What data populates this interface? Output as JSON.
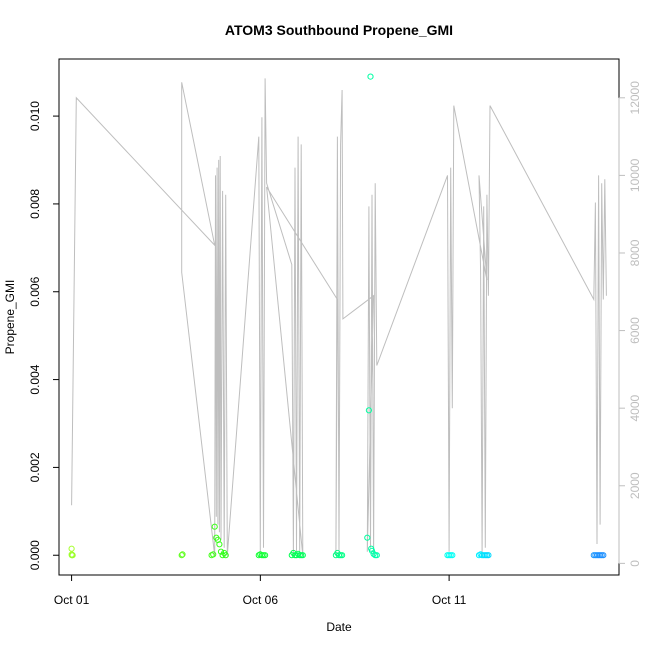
{
  "chart_data": {
    "type": "scatter",
    "title": "ATOM3 Southbound Propene_GMI",
    "xlabel": "Date",
    "ylabel": "Propene_GMI",
    "xlim": [
      "2016-09-30T16:00",
      "2016-10-15T12:00"
    ],
    "x_ticks": [
      {
        "date": "2016-10-01T00:00",
        "label": "Oct 01"
      },
      {
        "date": "2016-10-06T00:00",
        "label": "Oct 06"
      },
      {
        "date": "2016-10-11T00:00",
        "label": "Oct 11"
      }
    ],
    "ylim": [
      -0.00045,
      0.0113
    ],
    "y_ticks": [
      0.0,
      0.002,
      0.004,
      0.006,
      0.008,
      0.01
    ],
    "y_tick_labels": [
      "0.000",
      "0.002",
      "0.004",
      "0.006",
      "0.008",
      "0.010"
    ],
    "y2_label": "",
    "y2lim": [
      -300,
      13000
    ],
    "y2_ticks": [
      0,
      2000,
      4000,
      6000,
      8000,
      10000,
      12000
    ],
    "y2_tick_labels": [
      "0",
      "2000",
      "4000",
      "6000",
      "8000",
      "10000",
      "12000"
    ],
    "grid": false,
    "legend": "none",
    "colors": {
      "altitude_line": "#bebebe",
      "axes": "#000000",
      "right_axis": "#bebebe",
      "point_gradient": [
        "#adff2f",
        "#00ff00",
        "#00ff7f",
        "#00ffff",
        "#1e90ff"
      ]
    },
    "series": [
      {
        "points": [
          {
            "t": "2016-10-01T00:00",
            "v": 0.00015,
            "c": "#a8ff33"
          },
          {
            "t": "2016-10-01T00:05",
            "v": 2e-05,
            "c": "#a8ff33"
          },
          {
            "t": "2016-10-01T00:10",
            "v": 0.0,
            "c": "#a0ff30"
          },
          {
            "t": "2016-10-01T00:20",
            "v": 0.0,
            "c": "#a0ff30"
          },
          {
            "t": "2016-10-01T00:40",
            "v": 0.0,
            "c": "#98ff2c"
          },
          {
            "t": "2016-10-03T22:00",
            "v": 0.0,
            "c": "#60ff20"
          },
          {
            "t": "2016-10-03T22:30",
            "v": 2e-05,
            "c": "#60ff20"
          },
          {
            "t": "2016-10-04T17:00",
            "v": 0.0,
            "c": "#40ff18"
          },
          {
            "t": "2016-10-04T18:00",
            "v": 2e-05,
            "c": "#40ff18"
          },
          {
            "t": "2016-10-04T19:00",
            "v": 0.00065,
            "c": "#3cff18"
          },
          {
            "t": "2016-10-04T20:00",
            "v": 0.0004,
            "c": "#3cff18"
          },
          {
            "t": "2016-10-04T21:00",
            "v": 0.00035,
            "c": "#38ff18"
          },
          {
            "t": "2016-10-04T22:00",
            "v": 0.00025,
            "c": "#38ff18"
          },
          {
            "t": "2016-10-04T23:00",
            "v": 8e-05,
            "c": "#34ff18"
          },
          {
            "t": "2016-10-05T00:00",
            "v": 0.0,
            "c": "#30ff18"
          },
          {
            "t": "2016-10-05T01:00",
            "v": 5e-05,
            "c": "#30ff18"
          },
          {
            "t": "2016-10-05T02:00",
            "v": 0.0,
            "c": "#2cff18"
          },
          {
            "t": "2016-10-05T23:00",
            "v": 0.0,
            "c": "#10ff30"
          },
          {
            "t": "2016-10-06T00:00",
            "v": 2e-05,
            "c": "#10ff30"
          },
          {
            "t": "2016-10-06T01:00",
            "v": 0.0,
            "c": "#10ff34"
          },
          {
            "t": "2016-10-06T02:00",
            "v": 0.0,
            "c": "#10ff34"
          },
          {
            "t": "2016-10-06T03:00",
            "v": 0.0,
            "c": "#10ff38"
          },
          {
            "t": "2016-10-06T20:00",
            "v": 0.0,
            "c": "#00ff50"
          },
          {
            "t": "2016-10-06T21:00",
            "v": 5e-05,
            "c": "#00ff50"
          },
          {
            "t": "2016-10-06T22:00",
            "v": 0.0,
            "c": "#00ff54"
          },
          {
            "t": "2016-10-06T23:00",
            "v": 0.0,
            "c": "#00ff54"
          },
          {
            "t": "2016-10-07T00:00",
            "v": 3e-05,
            "c": "#00ff58"
          },
          {
            "t": "2016-10-07T01:00",
            "v": 0.0,
            "c": "#00ff58"
          },
          {
            "t": "2016-10-07T02:00",
            "v": 0.0,
            "c": "#00ff5c"
          },
          {
            "t": "2016-10-07T03:00",
            "v": 0.0,
            "c": "#00ff5c"
          },
          {
            "t": "2016-10-08T00:00",
            "v": 0.0,
            "c": "#00ff80"
          },
          {
            "t": "2016-10-08T01:00",
            "v": 5e-05,
            "c": "#00ff80"
          },
          {
            "t": "2016-10-08T02:00",
            "v": 0.0,
            "c": "#00ff84"
          },
          {
            "t": "2016-10-08T03:00",
            "v": 0.0,
            "c": "#00ff84"
          },
          {
            "t": "2016-10-08T04:00",
            "v": 0.0,
            "c": "#00ff88"
          },
          {
            "t": "2016-10-08T20:00",
            "v": 0.0004,
            "c": "#00ffa0"
          },
          {
            "t": "2016-10-08T21:00",
            "v": 0.0033,
            "c": "#00ffa0"
          },
          {
            "t": "2016-10-08T22:00",
            "v": 0.0109,
            "c": "#00ffa4"
          },
          {
            "t": "2016-10-08T22:30",
            "v": 0.00015,
            "c": "#00ffa4"
          },
          {
            "t": "2016-10-08T23:00",
            "v": 0.0001,
            "c": "#00ffa8"
          },
          {
            "t": "2016-10-09T00:00",
            "v": 3e-05,
            "c": "#00ffa8"
          },
          {
            "t": "2016-10-09T01:00",
            "v": 0.0,
            "c": "#00ffac"
          },
          {
            "t": "2016-10-09T02:00",
            "v": 0.0,
            "c": "#00ffac"
          },
          {
            "t": "2016-10-10T23:00",
            "v": 0.0,
            "c": "#00ffee"
          },
          {
            "t": "2016-10-11T00:00",
            "v": 0.0,
            "c": "#00fff0"
          },
          {
            "t": "2016-10-11T01:00",
            "v": 0.0,
            "c": "#00fff4"
          },
          {
            "t": "2016-10-11T02:00",
            "v": 0.0,
            "c": "#00fff8"
          },
          {
            "t": "2016-10-11T19:00",
            "v": 0.0,
            "c": "#00f0ff"
          },
          {
            "t": "2016-10-11T20:00",
            "v": 2e-05,
            "c": "#00ecff"
          },
          {
            "t": "2016-10-11T21:00",
            "v": 0.0,
            "c": "#00e8ff"
          },
          {
            "t": "2016-10-11T22:00",
            "v": 0.0,
            "c": "#00e4ff"
          },
          {
            "t": "2016-10-11T23:00",
            "v": 0.0,
            "c": "#00e0ff"
          },
          {
            "t": "2016-10-12T00:00",
            "v": 0.0,
            "c": "#00dcff"
          },
          {
            "t": "2016-10-12T01:00",
            "v": 0.0,
            "c": "#00d8ff"
          },
          {
            "t": "2016-10-14T20:00",
            "v": 0.0,
            "c": "#1e98ff"
          },
          {
            "t": "2016-10-14T21:00",
            "v": 0.0,
            "c": "#1e96ff"
          },
          {
            "t": "2016-10-14T22:00",
            "v": 0.0,
            "c": "#1e94ff"
          },
          {
            "t": "2016-10-14T23:00",
            "v": 0.0,
            "c": "#1e92ff"
          },
          {
            "t": "2016-10-15T00:00",
            "v": 0.0,
            "c": "#1e90ff"
          },
          {
            "t": "2016-10-15T01:00",
            "v": 0.0,
            "c": "#1e90ff"
          },
          {
            "t": "2016-10-15T02:00",
            "v": 0.0,
            "c": "#1e90ff"
          }
        ]
      }
    ],
    "altitude_line": [
      [
        "2016-10-01T00:00",
        1500
      ],
      [
        "2016-10-01T03:00",
        12000
      ],
      [
        "2016-10-04T19:00",
        8200
      ],
      [
        "2016-10-03T22:00",
        12400
      ],
      [
        "2016-10-03T22:00",
        7500
      ],
      [
        "2016-10-04T19:00",
        200
      ],
      [
        "2016-10-04T19:30",
        10000
      ],
      [
        "2016-10-04T20:00",
        1200
      ],
      [
        "2016-10-04T20:30",
        10200
      ],
      [
        "2016-10-04T21:00",
        1000
      ],
      [
        "2016-10-04T21:30",
        10400
      ],
      [
        "2016-10-04T22:00",
        800
      ],
      [
        "2016-10-04T22:30",
        10500
      ],
      [
        "2016-10-04T23:00",
        600
      ],
      [
        "2016-10-05T00:00",
        9600
      ],
      [
        "2016-10-05T01:00",
        400
      ],
      [
        "2016-10-05T02:00",
        9500
      ],
      [
        "2016-10-05T03:00",
        200
      ],
      [
        "2016-10-05T23:00",
        11000
      ],
      [
        "2016-10-06T00:00",
        300
      ],
      [
        "2016-10-06T01:00",
        11500
      ],
      [
        "2016-10-06T02:00",
        400
      ],
      [
        "2016-10-06T03:00",
        12500
      ],
      [
        "2016-10-06T04:00",
        9800
      ],
      [
        "2016-10-06T20:00",
        7700
      ],
      [
        "2016-10-06T21:00",
        200
      ],
      [
        "2016-10-06T22:00",
        10200
      ],
      [
        "2016-10-06T23:00",
        300
      ],
      [
        "2016-10-07T00:00",
        11000
      ],
      [
        "2016-10-07T01:00",
        200
      ],
      [
        "2016-10-07T02:00",
        10800
      ],
      [
        "2016-10-07T03:00",
        200
      ],
      [
        "2016-10-06T04:00",
        9700
      ],
      [
        "2016-10-08T01:00",
        6800
      ],
      [
        "2016-10-08T00:00",
        200
      ],
      [
        "2016-10-08T01:00",
        11000
      ],
      [
        "2016-10-08T02:00",
        300
      ],
      [
        "2016-10-08T03:00",
        10800
      ],
      [
        "2016-10-08T04:00",
        12200
      ],
      [
        "2016-10-08T04:30",
        6300
      ],
      [
        "2016-10-09T00:00",
        6900
      ],
      [
        "2016-10-08T20:00",
        300
      ],
      [
        "2016-10-08T21:00",
        9200
      ],
      [
        "2016-10-08T22:00",
        400
      ],
      [
        "2016-10-08T23:00",
        9500
      ],
      [
        "2016-10-09T00:00",
        200
      ],
      [
        "2016-10-09T01:00",
        9800
      ],
      [
        "2016-10-09T02:00",
        5100
      ],
      [
        "2016-10-10T23:00",
        10000
      ],
      [
        "2016-10-11T00:00",
        300
      ],
      [
        "2016-10-11T01:00",
        10200
      ],
      [
        "2016-10-11T02:00",
        4000
      ],
      [
        "2016-10-11T03:00",
        11800
      ],
      [
        "2016-10-12T00:00",
        7300
      ],
      [
        "2016-10-11T19:00",
        10000
      ],
      [
        "2016-10-11T20:00",
        7500
      ],
      [
        "2016-10-11T21:00",
        200
      ],
      [
        "2016-10-11T22:00",
        9200
      ],
      [
        "2016-10-11T23:00",
        400
      ],
      [
        "2016-10-12T00:00",
        9500
      ],
      [
        "2016-10-12T01:00",
        6900
      ],
      [
        "2016-10-12T02:00",
        11800
      ],
      [
        "2016-10-14T20:00",
        6800
      ],
      [
        "2016-10-14T21:00",
        9300
      ],
      [
        "2016-10-14T22:00",
        500
      ],
      [
        "2016-10-14T23:00",
        10000
      ],
      [
        "2016-10-15T00:00",
        1000
      ],
      [
        "2016-10-15T01:00",
        9800
      ],
      [
        "2016-10-15T02:00",
        6800
      ],
      [
        "2016-10-15T03:00",
        9900
      ],
      [
        "2016-10-15T04:00",
        6900
      ]
    ]
  }
}
